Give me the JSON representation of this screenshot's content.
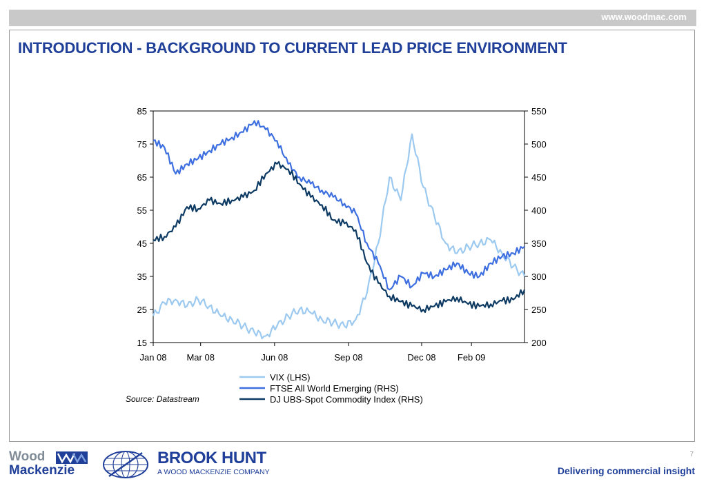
{
  "header": {
    "url": "www.woodmac.com"
  },
  "slide": {
    "title": "INTRODUCTION - BACKGROUND TO CURRENT LEAD PRICE ENVIRONMENT",
    "source": "Source: Datastream",
    "page_number": "7"
  },
  "footer": {
    "tagline": "Delivering commercial insight",
    "wm_logo": {
      "line1": "Wood",
      "line2": "Mackenzie"
    },
    "bh_logo": {
      "name": "BROOK HUNT",
      "sub": "A WOOD MACKENZIE COMPANY"
    }
  },
  "chart_data": {
    "type": "line",
    "x_ticks": [
      "Jan 08",
      "Mar 08",
      "Jun 08",
      "Sep 08",
      "Dec 08",
      "Feb 09"
    ],
    "x_dates": [
      "2008-01-02",
      "2008-01-16",
      "2008-01-30",
      "2008-02-13",
      "2008-02-27",
      "2008-03-12",
      "2008-03-26",
      "2008-04-09",
      "2008-04-23",
      "2008-05-07",
      "2008-05-21",
      "2008-06-04",
      "2008-06-18",
      "2008-07-02",
      "2008-07-16",
      "2008-07-30",
      "2008-08-13",
      "2008-08-27",
      "2008-09-10",
      "2008-09-24",
      "2008-10-08",
      "2008-10-22",
      "2008-11-05",
      "2008-11-19",
      "2008-12-03",
      "2008-12-17",
      "2008-12-31",
      "2009-01-14",
      "2009-01-28",
      "2009-02-11",
      "2009-02-25",
      "2009-03-11",
      "2009-03-25",
      "2009-04-08"
    ],
    "y_left": {
      "ticks": [
        15,
        25,
        35,
        45,
        55,
        65,
        75,
        85
      ],
      "min": 15,
      "max": 85
    },
    "y_right": {
      "ticks": [
        200,
        250,
        300,
        350,
        400,
        450,
        500,
        550
      ],
      "min": 200,
      "max": 550
    },
    "legend_position": "bottom",
    "grid": false,
    "series": [
      {
        "name": "VIX (LHS)",
        "axis": "left",
        "color": "#9cc9f0",
        "values": [
          23,
          27,
          28,
          26,
          28,
          26,
          23,
          22,
          20,
          18,
          17,
          20,
          23,
          25,
          24,
          22,
          21,
          20,
          22,
          30,
          45,
          65,
          58,
          78,
          62,
          53,
          45,
          42,
          44,
          45,
          46,
          42,
          38,
          35
        ]
      },
      {
        "name": "FTSE All World Emerging (RHS)",
        "axis": "right",
        "color": "#3d6fe0",
        "values": [
          505,
          495,
          455,
          470,
          478,
          490,
          500,
          510,
          518,
          535,
          522,
          505,
          470,
          450,
          440,
          430,
          420,
          410,
          395,
          350,
          320,
          280,
          300,
          285,
          305,
          300,
          310,
          320,
          305,
          300,
          320,
          330,
          335,
          345
        ]
      },
      {
        "name": "DJ UBS-Spot Commodity Index (RHS)",
        "axis": "right",
        "color": "#0d3a63",
        "values": [
          355,
          360,
          375,
          405,
          402,
          415,
          410,
          415,
          420,
          430,
          455,
          470,
          462,
          440,
          420,
          408,
          385,
          380,
          370,
          320,
          290,
          270,
          262,
          255,
          250,
          255,
          262,
          268,
          258,
          255,
          258,
          263,
          265,
          280
        ]
      }
    ]
  }
}
